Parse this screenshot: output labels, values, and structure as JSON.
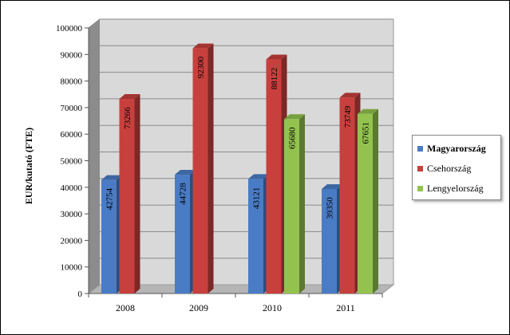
{
  "chart_data": {
    "type": "bar",
    "ylabel": "EUR/kutató (FTE)",
    "categories": [
      "2008",
      "2009",
      "2010",
      "2011"
    ],
    "ylim": [
      0,
      100000
    ],
    "yticks": [
      "0",
      "10000",
      "20000",
      "30000",
      "40000",
      "50000",
      "60000",
      "70000",
      "80000",
      "90000",
      "100000"
    ],
    "series": [
      {
        "name": "Magyarország",
        "color": "#4a7cc5",
        "values": [
          42754,
          44728,
          43121,
          39350
        ],
        "labels": [
          "42754",
          "44728",
          "43121",
          "39350"
        ]
      },
      {
        "name": "Csehország",
        "color": "#c8403d",
        "values": [
          73266,
          92300,
          88122,
          73749
        ],
        "labels": [
          "73266",
          "92300",
          "88122",
          "73749"
        ]
      },
      {
        "name": "Lengyelország",
        "color": "#93c34e",
        "values": [
          null,
          null,
          65680,
          67651
        ],
        "labels": [
          "",
          "",
          "65680",
          "67651"
        ]
      }
    ],
    "legend_position": "right",
    "grid": true
  }
}
